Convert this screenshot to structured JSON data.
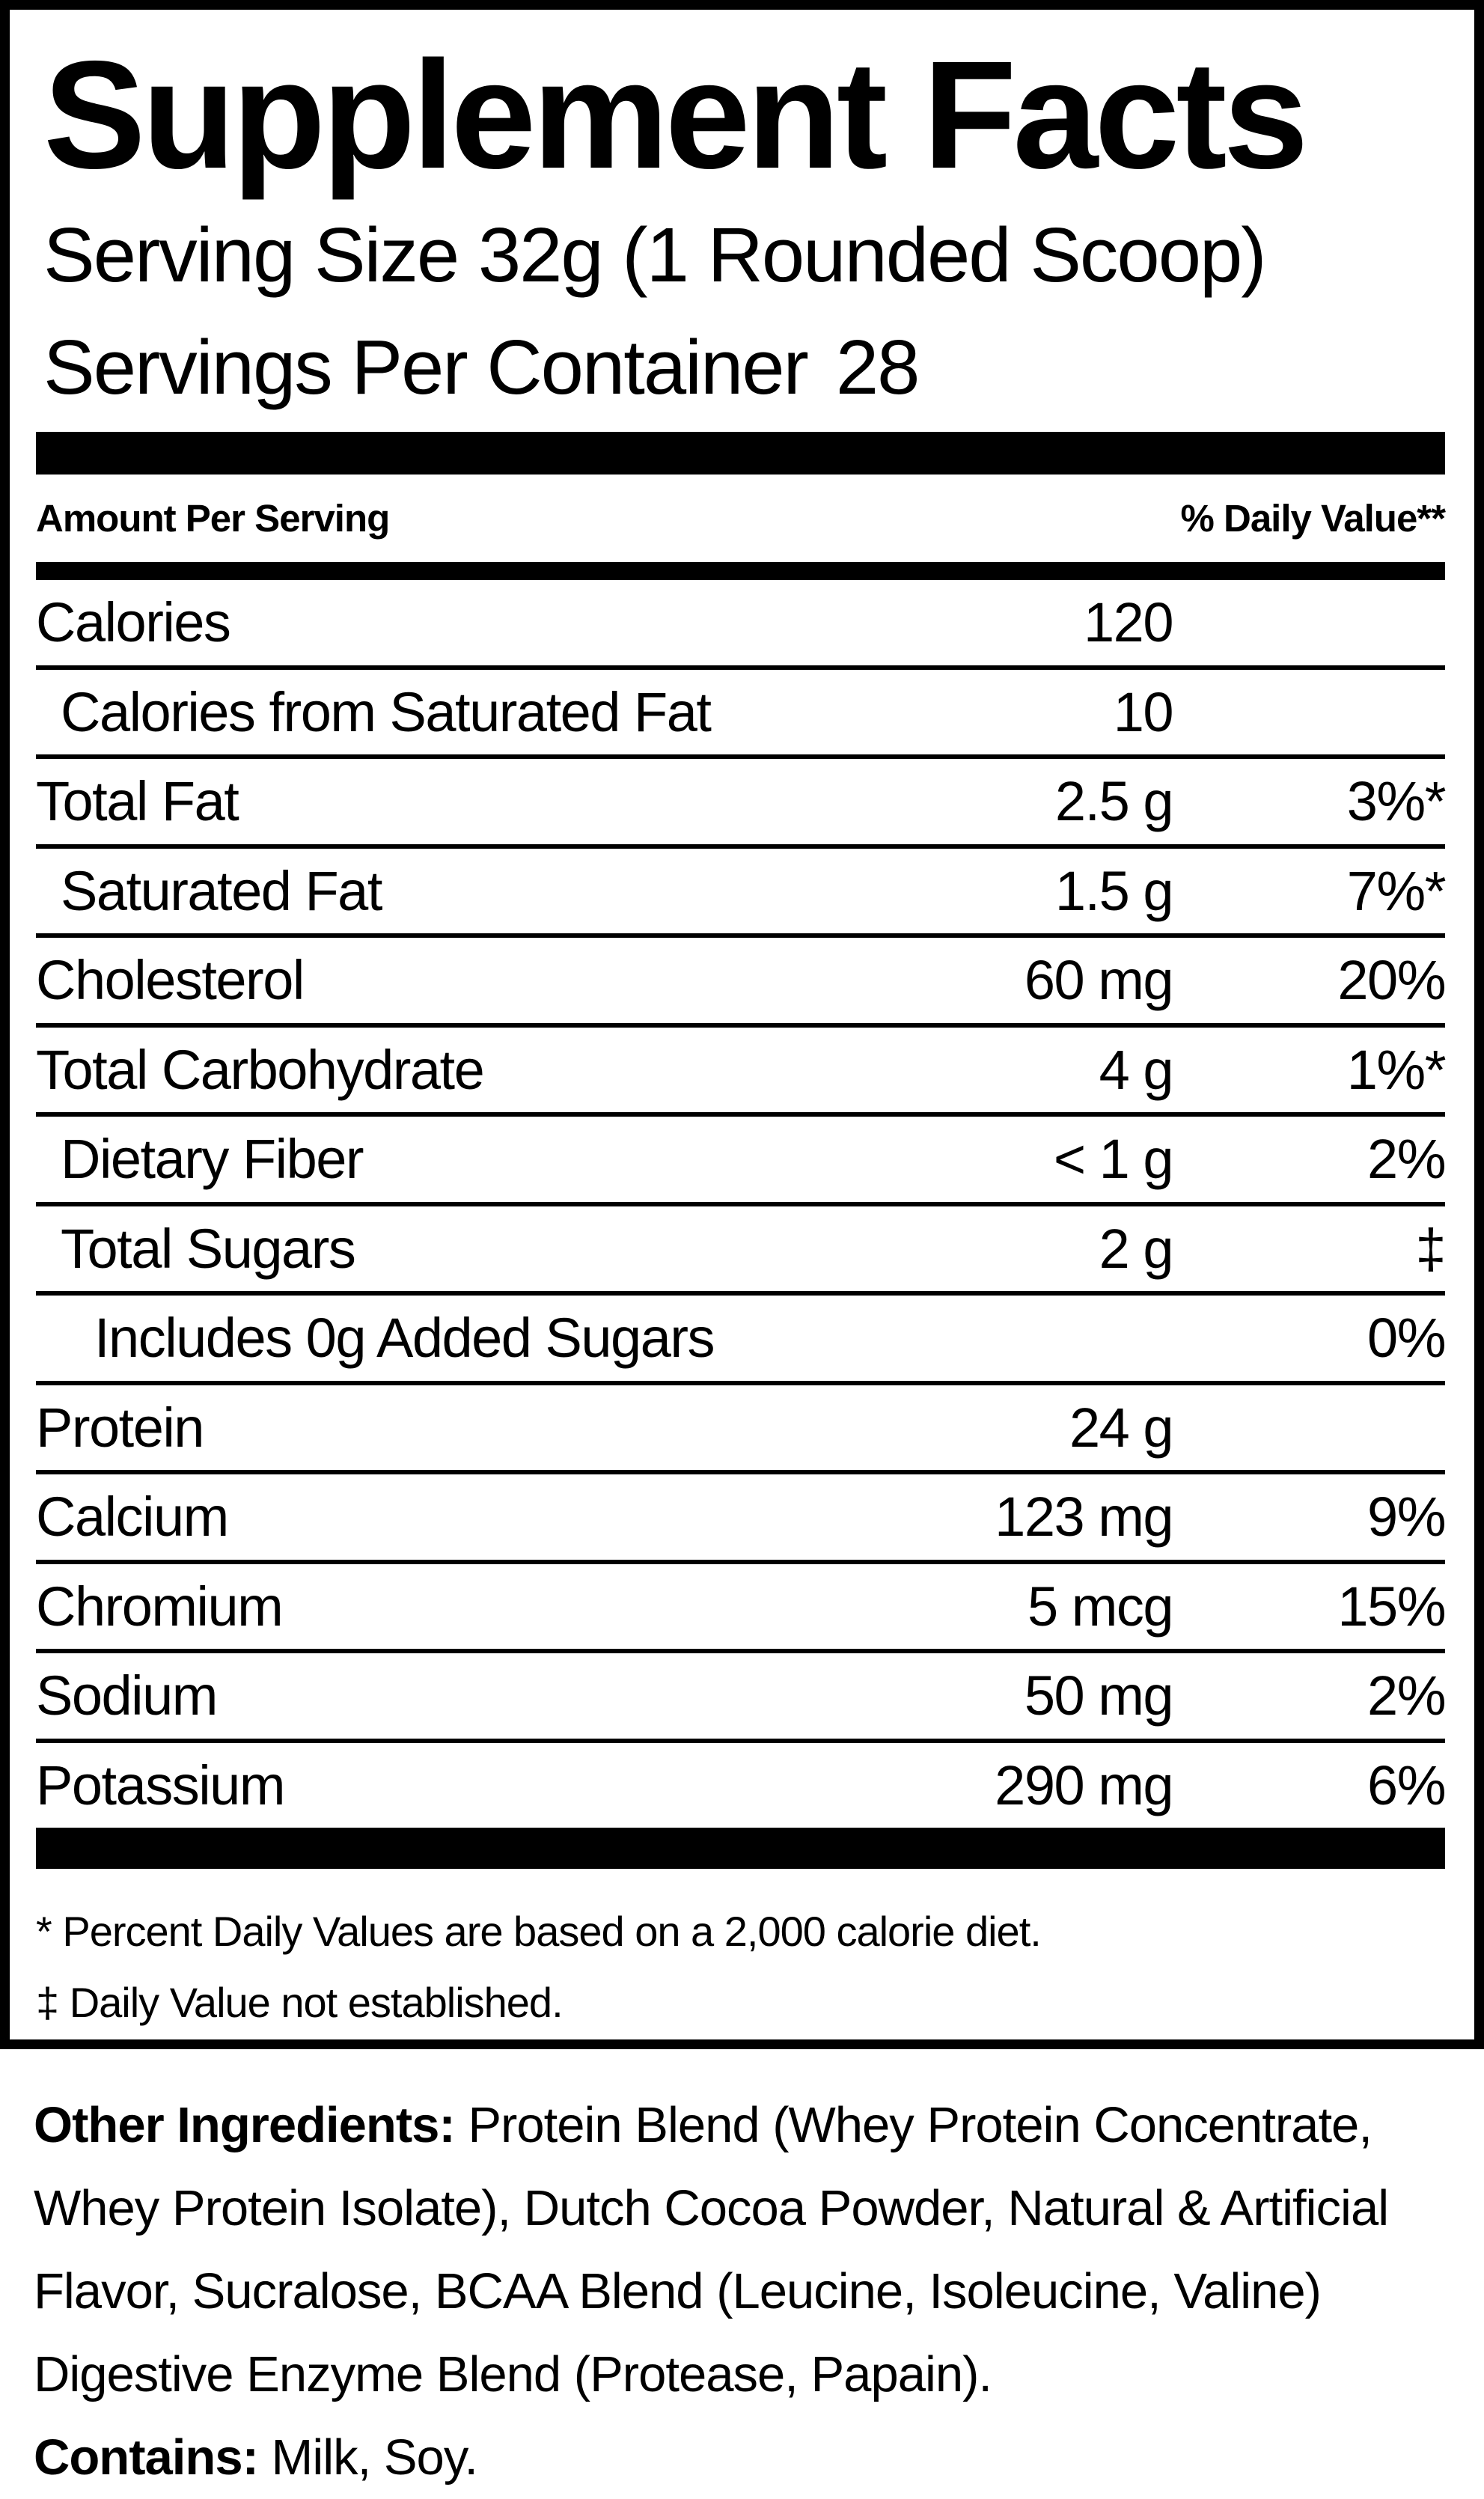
{
  "label": {
    "title": "Supplement Facts",
    "serving_size": "Serving Size 32g (1 Rounded Scoop)",
    "servings_per_container_label": "Servings Per Container",
    "servings_per_container_value": "28",
    "header": {
      "amount_per_serving": "Amount Per Serving",
      "daily_value": "% Daily Value**"
    },
    "rows": [
      {
        "name": "Calories",
        "amount": "120",
        "dv": "",
        "indent": 0
      },
      {
        "name": "Calories from Saturated Fat",
        "amount": "10",
        "dv": "",
        "indent": 1
      },
      {
        "name": "Total Fat",
        "amount": "2.5 g",
        "dv": "3%*",
        "indent": 0
      },
      {
        "name": "Saturated Fat",
        "amount": "1.5 g",
        "dv": "7%*",
        "indent": 1
      },
      {
        "name": "Cholesterol",
        "amount": "60 mg",
        "dv": "20%",
        "indent": 0
      },
      {
        "name": "Total Carbohydrate",
        "amount": "4 g",
        "dv": "1%*",
        "indent": 0
      },
      {
        "name": "Dietary Fiber",
        "amount": "< 1 g",
        "dv": "2%",
        "indent": 1
      },
      {
        "name": "Total Sugars",
        "amount": "2 g",
        "dv": "‡",
        "indent": 1
      },
      {
        "name": "Includes 0g Added Sugars",
        "amount": "",
        "dv": "0%",
        "indent": 2
      },
      {
        "name": "Protein",
        "amount": "24 g",
        "dv": "",
        "indent": 0
      },
      {
        "name": "Calcium",
        "amount": "123 mg",
        "dv": "9%",
        "indent": 0
      },
      {
        "name": "Chromium",
        "amount": "5 mcg",
        "dv": "15%",
        "indent": 0
      },
      {
        "name": "Sodium",
        "amount": "50 mg",
        "dv": "2%",
        "indent": 0
      },
      {
        "name": "Potassium",
        "amount": "290 mg",
        "dv": "6%",
        "indent": 0
      }
    ],
    "footnotes": [
      "* Percent Daily Values are based on a 2,000 calorie diet.",
      "‡ Daily Value not established."
    ]
  },
  "ingredients": {
    "other_label": "Other Ingredients:",
    "other_text": " Protein Blend (Whey Protein Concentrate, Whey Protein Isolate), Dutch Cocoa Powder, Natural & Artificial Flavor, Sucralose, BCAA Blend (Leucine, Isoleucine, Valine) Digestive Enzyme Blend (Protease, Papain).",
    "contains_label": "Contains:",
    "contains_text": " Milk, Soy."
  }
}
